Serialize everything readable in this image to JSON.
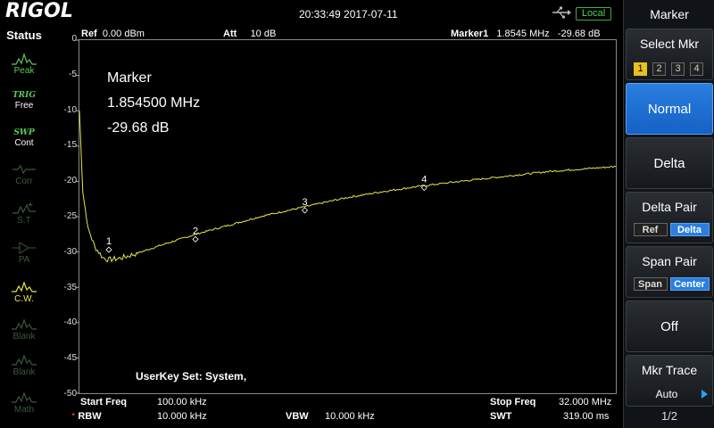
{
  "topbar": {
    "logo": "RIGOL",
    "datetime": "20:33:49 2017-07-11",
    "remote_status": "Local"
  },
  "status": {
    "title": "Status",
    "items": [
      {
        "label": "Peak",
        "icon": "peak-icon",
        "state": "normal"
      },
      {
        "label": "TRIG",
        "sub": "Free",
        "icon": "trig-icon",
        "state": "normal"
      },
      {
        "label": "SWP",
        "sub": "Cont",
        "icon": "sweep-icon",
        "state": "normal"
      },
      {
        "label": "Corr",
        "icon": "correction-icon",
        "state": "dim"
      },
      {
        "label": "S.T",
        "icon": "tracking-icon",
        "state": "dim"
      },
      {
        "label": "PA",
        "icon": "preamp-icon",
        "state": "dim"
      },
      {
        "label": "C.W.",
        "icon": "cw-icon",
        "state": "active"
      },
      {
        "label": "Blank",
        "icon": "blank-icon",
        "state": "dim"
      },
      {
        "label": "Blank",
        "icon": "blank-icon",
        "state": "dim"
      },
      {
        "label": "Math",
        "icon": "math-icon",
        "state": "dim"
      }
    ]
  },
  "plot_header": {
    "ref_label": "Ref",
    "ref_value": "0.00 dBm",
    "att_label": "Att",
    "att_value": "10 dB",
    "marker_label": "Marker1",
    "marker_freq": "1.8545 MHz",
    "marker_level": "-29.68 dB"
  },
  "y_ticks": [
    "0",
    "-5",
    "-10",
    "-15",
    "-20",
    "-25",
    "-30",
    "-35",
    "-40",
    "-45",
    "-50"
  ],
  "marker_readout": {
    "title": "Marker",
    "freq": "1.854500 MHz",
    "level": "-29.68 dB"
  },
  "userkey": "UserKey Set:   System,",
  "footer": {
    "start_label": "Start Freq",
    "start_value": "100.00 kHz",
    "stop_label": "Stop Freq",
    "stop_value": "32.000 MHz",
    "rbw_label": "RBW",
    "rbw_value": "10.000 kHz",
    "vbw_label": "VBW",
    "vbw_value": "10.000 kHz",
    "swt_label": "SWT",
    "swt_value": "319.00 ms",
    "star": "*"
  },
  "menu": {
    "title": "Marker",
    "select_mkr_label": "Select Mkr",
    "mkr_numbers": [
      "1",
      "2",
      "3",
      "4"
    ],
    "selected_mkr": "1",
    "normal_label": "Normal",
    "delta_label": "Delta",
    "delta_pair_label": "Delta Pair",
    "delta_pair_opts": [
      "Ref",
      "Delta"
    ],
    "span_pair_label": "Span Pair",
    "span_pair_opts": [
      "Span",
      "Center"
    ],
    "off_label": "Off",
    "mkr_trace_label": "Mkr Trace",
    "mkr_trace_value": "Auto",
    "page": "1/2"
  },
  "chart_data": {
    "type": "line",
    "x_unit": "MHz",
    "y_unit": "dB",
    "xlim": [
      0.1,
      32.0
    ],
    "ylim": [
      -50,
      0
    ],
    "grid": false,
    "series": [
      {
        "color": "#e6e64a",
        "x": [
          0.1,
          0.3,
          0.6,
          1.0,
          1.5,
          1.85,
          2.5,
          3.5,
          5.0,
          7.0,
          9.0,
          11.0,
          13.5,
          16.0,
          18.0,
          20.0,
          22.0,
          25.0,
          28.0,
          32.0
        ],
        "y": [
          -10.0,
          -21.5,
          -26.5,
          -29.2,
          -30.8,
          -31.1,
          -30.9,
          -30.2,
          -29.0,
          -27.5,
          -26.2,
          -24.9,
          -23.6,
          -22.3,
          -21.5,
          -20.8,
          -20.2,
          -19.4,
          -18.6,
          -17.9
        ]
      }
    ],
    "markers": [
      {
        "label": "1",
        "x": 1.85,
        "y": -29.68
      },
      {
        "label": "2",
        "x": 7.0,
        "y": -28.2
      },
      {
        "label": "3",
        "x": 13.5,
        "y": -24.1
      },
      {
        "label": "4",
        "x": 20.6,
        "y": -20.9
      }
    ]
  }
}
